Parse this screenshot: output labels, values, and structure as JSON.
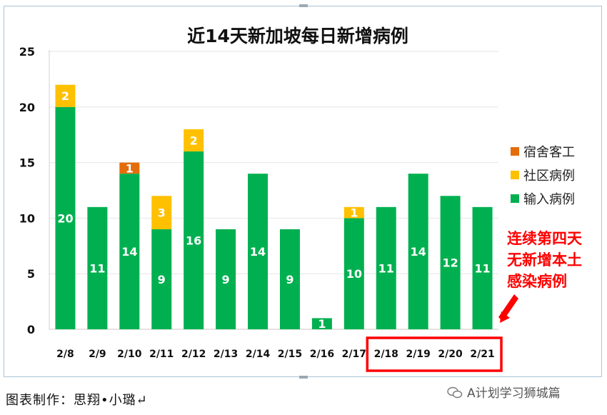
{
  "chart_data": {
    "type": "bar",
    "stacked": true,
    "title": "近14天新加坡每日新增病例",
    "categories": [
      "2/8",
      "2/9",
      "2/10",
      "2/11",
      "2/12",
      "2/13",
      "2/14",
      "2/15",
      "2/16",
      "2/17",
      "2/18",
      "2/19",
      "2/20",
      "2/21"
    ],
    "series": [
      {
        "name": "输入病例",
        "color": "#00b050",
        "values": [
          20,
          11,
          14,
          9,
          16,
          9,
          14,
          9,
          1,
          10,
          11,
          14,
          12,
          11
        ]
      },
      {
        "name": "社区病例",
        "color": "#ffc000",
        "values": [
          2,
          0,
          0,
          3,
          2,
          0,
          0,
          0,
          0,
          1,
          0,
          0,
          0,
          0
        ]
      },
      {
        "name": "宿舍客工",
        "color": "#e46c0a",
        "values": [
          0,
          0,
          1,
          0,
          0,
          0,
          0,
          0,
          0,
          0,
          0,
          0,
          0,
          0
        ]
      }
    ],
    "legend_order": [
      "宿舍客工",
      "社区病例",
      "输入病例"
    ],
    "legend_position": "right",
    "ylim": [
      0,
      25
    ],
    "yticks": [
      0,
      5,
      10,
      15,
      20,
      25
    ],
    "grid": true,
    "annotation": {
      "lines": [
        "连续第四天",
        "无新增本土",
        "感染病例"
      ],
      "color": "#ff0000",
      "highlight_categories": [
        "2/18",
        "2/19",
        "2/20",
        "2/21"
      ]
    }
  },
  "caption": "图表制作：思翔•小璐↵",
  "watermark": "A计划学习狮城篇"
}
